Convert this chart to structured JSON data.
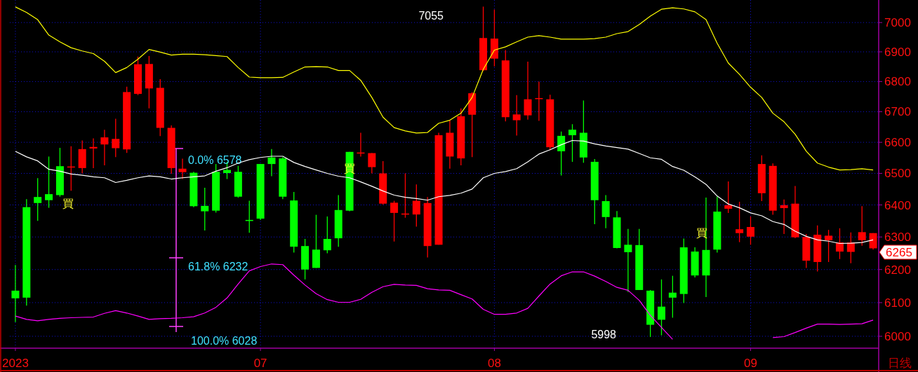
{
  "chart_data": {
    "type": "candlestick",
    "categories": [
      "2023",
      null,
      null,
      null,
      null,
      null,
      null,
      null,
      null,
      null,
      null,
      null,
      null,
      null,
      null,
      null,
      null,
      null,
      null,
      null,
      null,
      null,
      "07",
      null,
      null,
      null,
      null,
      null,
      null,
      null,
      null,
      null,
      null,
      null,
      null,
      null,
      null,
      null,
      null,
      null,
      null,
      null,
      null,
      "08",
      null,
      null,
      null,
      null,
      null,
      null,
      null,
      null,
      null,
      null,
      null,
      null,
      null,
      null,
      null,
      null,
      null,
      null,
      null,
      null,
      null,
      null,
      "09",
      null,
      null,
      null,
      null,
      null,
      null,
      null,
      null,
      null,
      null,
      null
    ],
    "ohlc": [
      [
        6113,
        6214,
        6042,
        6136
      ],
      [
        6115,
        6418,
        6091,
        6393
      ],
      [
        6406,
        6485,
        6350,
        6425
      ],
      [
        6415,
        6554,
        6391,
        6434
      ],
      [
        6431,
        6582,
        6426,
        6523
      ],
      [
        6522,
        6587,
        6445,
        6522
      ],
      [
        6578,
        6606,
        6500,
        6517
      ],
      [
        6585,
        6613,
        6517,
        6580
      ],
      [
        6616,
        6641,
        6526,
        6593
      ],
      [
        6611,
        6677,
        6552,
        6581
      ],
      [
        6765,
        6783,
        6566,
        6577
      ],
      [
        6858,
        6884,
        6755,
        6759
      ],
      [
        6859,
        6886,
        6711,
        6777
      ],
      [
        6779,
        6808,
        6620,
        6647
      ],
      [
        6647,
        6655,
        6499,
        6517
      ],
      [
        6515,
        6547,
        6482,
        6504
      ],
      [
        6396,
        6505,
        6393,
        6502
      ],
      [
        6380,
        6454,
        6320,
        6397
      ],
      [
        6382,
        6530,
        6376,
        6505
      ],
      [
        6501,
        6537,
        6482,
        6511
      ],
      [
        6426,
        6524,
        6423,
        6505
      ],
      [
        6353,
        6413,
        6313,
        6353
      ],
      [
        6357,
        6530,
        6353,
        6530
      ],
      [
        6530,
        6578,
        6491,
        6551
      ],
      [
        6426,
        6552,
        6418,
        6548
      ],
      [
        6270,
        6441,
        6252,
        6414
      ],
      [
        6200,
        6294,
        6170,
        6272
      ],
      [
        6205,
        6369,
        6205,
        6261
      ],
      [
        6259,
        6364,
        6250,
        6294
      ],
      [
        6296,
        6431,
        6270,
        6384
      ],
      [
        6382,
        6569,
        6380,
        6569
      ],
      [
        6567,
        6631,
        6554,
        6567
      ],
      [
        6565,
        6565,
        6500,
        6520
      ],
      [
        6500,
        6539,
        6401,
        6404
      ],
      [
        6407,
        6413,
        6286,
        6375
      ],
      [
        6373,
        6500,
        6360,
        6373
      ],
      [
        6413,
        6465,
        6332,
        6370
      ],
      [
        6406,
        6425,
        6237,
        6272
      ],
      [
        6623,
        6631,
        6276,
        6276
      ],
      [
        6631,
        6672,
        6515,
        6554
      ],
      [
        6685,
        6711,
        6526,
        6548
      ],
      [
        6761,
        6765,
        6552,
        6690
      ],
      [
        6947,
        7055,
        6835,
        6838
      ],
      [
        6945,
        7045,
        6851,
        6877
      ],
      [
        6871,
        6906,
        6668,
        6682
      ],
      [
        6691,
        6755,
        6622,
        6672
      ],
      [
        6741,
        6867,
        6674,
        6688
      ],
      [
        6745,
        6800,
        6670,
        6745
      ],
      [
        6741,
        6756,
        6575,
        6584
      ],
      [
        6571,
        6635,
        6493,
        6621
      ],
      [
        6623,
        6659,
        6537,
        6641
      ],
      [
        6551,
        6737,
        6534,
        6631
      ],
      [
        6415,
        6546,
        6340,
        6537
      ],
      [
        6362,
        6431,
        6327,
        6412
      ],
      [
        6266,
        6381,
        6265,
        6361
      ],
      [
        6253,
        6325,
        6132,
        6276
      ],
      [
        6138,
        6325,
        6138,
        6275
      ],
      [
        6034,
        6138,
        5998,
        6136
      ],
      [
        6049,
        6170,
        6003,
        6088
      ],
      [
        6115,
        6181,
        6055,
        6130
      ],
      [
        6126,
        6295,
        6099,
        6268
      ],
      [
        6182,
        6268,
        6176,
        6255
      ],
      [
        6182,
        6423,
        6117,
        6260
      ],
      [
        6261,
        6426,
        6252,
        6379
      ],
      [
        6399,
        6474,
        6375,
        6388
      ],
      [
        6324,
        6410,
        6284,
        6312
      ],
      [
        6331,
        6364,
        6276,
        6301
      ],
      [
        6530,
        6558,
        6412,
        6437
      ],
      [
        6524,
        6532,
        6369,
        6382
      ],
      [
        6399,
        6417,
        6309,
        6390
      ],
      [
        6404,
        6460,
        6296,
        6299
      ],
      [
        6300,
        6309,
        6205,
        6227
      ],
      [
        6307,
        6336,
        6194,
        6223
      ],
      [
        6304,
        6322,
        6223,
        6290
      ],
      [
        6283,
        6327,
        6232,
        6255
      ],
      [
        6283,
        6314,
        6219,
        6254
      ],
      [
        6315,
        6396,
        6273,
        6290
      ],
      [
        6312,
        6312,
        6261,
        6265
      ]
    ],
    "colors": [
      "#00ff00",
      "#00ff00",
      "#00ff00",
      "#00ff00",
      "#00ff00",
      "#ff0000",
      "#ff0000",
      "#ff0000",
      "#ff0000",
      "#ff0000",
      "#ff0000",
      "#ff0000",
      "#ff0000",
      "#ff0000",
      "#ff0000",
      "#ff0000",
      "#00ff00",
      "#00ff00",
      "#00ff00",
      "#00ff00",
      "#00ff00",
      "#00ff00",
      "#00ff00",
      "#00ff00",
      "#00ff00",
      "#00ff00",
      "#00ff00",
      "#00ff00",
      "#00ff00",
      "#00ff00",
      "#00ff00",
      "#ff0000",
      "#ff0000",
      "#ff0000",
      "#ff0000",
      "#ff0000",
      "#ff0000",
      "#ff0000",
      "#ff0000",
      "#ff0000",
      "#ff0000",
      "#ff0000",
      "#ff0000",
      "#ff0000",
      "#ff0000",
      "#ff0000",
      "#ff0000",
      "#ff0000",
      "#ff0000",
      "#00ff00",
      "#00ff00",
      "#00ff00",
      "#00ff00",
      "#00ff00",
      "#00ff00",
      "#00ff00",
      "#00ff00",
      "#00ff00",
      "#00ff00",
      "#00ff00",
      "#00ff00",
      "#00ff00",
      "#00ff00",
      "#00ff00",
      "#ff0000",
      "#ff0000",
      "#ff0000",
      "#ff0000",
      "#ff0000",
      "#ff0000",
      "#ff0000",
      "#ff0000",
      "#ff0000",
      "#ff0000",
      "#ff0000",
      "#ff0000",
      "#ff0000",
      "#ff0000"
    ],
    "series": [
      {
        "type": "line",
        "color": "#ffff00",
        "values": [
          7054,
          7035,
          7010,
          6957,
          6934,
          6914,
          6903,
          6894,
          6868,
          6830,
          6847,
          6875,
          6908,
          6899,
          6889,
          6892,
          6892,
          6890,
          6887,
          6884,
          6847,
          6815,
          6813,
          6813,
          6814,
          6832,
          6849,
          6850,
          6849,
          6837,
          6837,
          6804,
          6747,
          6682,
          6648,
          6637,
          6630,
          6632,
          6662,
          6672,
          6695,
          6747,
          6841,
          6906,
          6917,
          6934,
          6950,
          6955,
          6950,
          6943,
          6943,
          6943,
          6945,
          6950,
          6962,
          6969,
          6993,
          7022,
          7046,
          7051,
          7047,
          7037,
          7010,
          6929,
          6862,
          6824,
          6781,
          6747,
          6695,
          6667,
          6626,
          6571,
          6533,
          6520,
          6511,
          6512,
          6515,
          6511
        ]
      },
      {
        "type": "line",
        "color": "#ffffff",
        "values": [
          6571,
          6553,
          6540,
          6513,
          6507,
          6498,
          6494,
          6489,
          6486,
          6471,
          6478,
          6486,
          6492,
          6489,
          6482,
          6486,
          6489,
          6492,
          6507,
          6518,
          6533,
          6544,
          6551,
          6555,
          6555,
          6535,
          6522,
          6511,
          6500,
          6491,
          6486,
          6473,
          6459,
          6444,
          6431,
          6424,
          6420,
          6415,
          6426,
          6430,
          6437,
          6450,
          6486,
          6500,
          6506,
          6515,
          6537,
          6562,
          6576,
          6592,
          6606,
          6604,
          6595,
          6588,
          6583,
          6578,
          6564,
          6550,
          6545,
          6522,
          6510,
          6489,
          6465,
          6428,
          6403,
          6391,
          6375,
          6366,
          6348,
          6339,
          6318,
          6302,
          6291,
          6287,
          6280,
          6281,
          6283,
          6291
        ]
      },
      {
        "type": "line",
        "color": "#ff00ff",
        "values": [
          6060,
          6050,
          6046,
          6050,
          6053,
          6055,
          6056,
          6057,
          6068,
          6076,
          6069,
          6060,
          6050,
          6052,
          6053,
          6055,
          6058,
          6069,
          6086,
          6114,
          6156,
          6196,
          6209,
          6217,
          6215,
          6183,
          6153,
          6127,
          6109,
          6101,
          6101,
          6110,
          6131,
          6148,
          6155,
          6153,
          6152,
          6142,
          6138,
          6137,
          6124,
          6111,
          6080,
          6065,
          6065,
          6069,
          6083,
          6120,
          6156,
          6181,
          6193,
          6193,
          6180,
          6164,
          6146,
          6137,
          6107,
          6062,
          6026,
          5991,
          null,
          null,
          null,
          null,
          null,
          null,
          null,
          null,
          5996,
          5999,
          6011,
          6024,
          6036,
          6036,
          6035,
          6036,
          6037,
          6048
        ]
      }
    ],
    "ylim": [
      5965,
      7078
    ],
    "yticks": [
      6000,
      6100,
      6200,
      6300,
      6400,
      6500,
      6600,
      6700,
      6800,
      6900,
      7000
    ],
    "log": true,
    "grid": true,
    "annotations": [
      "0.0% 6578",
      "61.8% 6232",
      "100.0% 6028",
      "7055",
      "5998",
      "6265",
      "買",
      "買",
      "買",
      "日线"
    ]
  }
}
